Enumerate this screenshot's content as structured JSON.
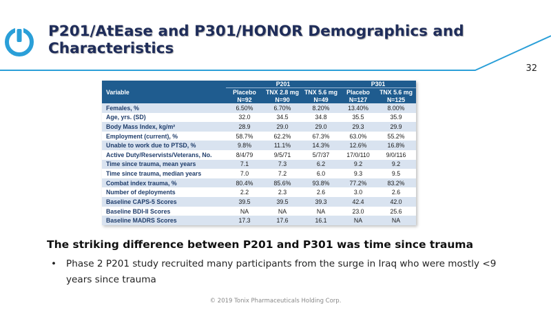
{
  "title": "P201/AtEase and P301/HONOR Demographics and Characteristics",
  "page_number": "32",
  "colors": {
    "title": "#1f2d5a",
    "accent": "#2a9fd8",
    "table_header": "#1f5c8f",
    "row_shade": "#d9e3f0"
  },
  "logo_icon": "power-icon",
  "table": {
    "variable_header": "Variable",
    "groups": [
      "P201",
      "P301"
    ],
    "columns": [
      {
        "label": "Placebo",
        "n": "N=92"
      },
      {
        "label": "TNX 2.8 mg",
        "n": "N=90"
      },
      {
        "label": "TNX  5.6 mg",
        "n": "N=49"
      },
      {
        "label": "Placebo",
        "n": "N=127"
      },
      {
        "label": "TNX 5.6 mg",
        "n": "N=125"
      }
    ],
    "rows": [
      {
        "label": "Females, %",
        "values": [
          "6.50%",
          "6.70%",
          "8.20%",
          "13.40%",
          "8.00%"
        ]
      },
      {
        "label": "Age, yrs. (SD)",
        "values": [
          "32.0",
          "34.5",
          "34.8",
          "35.5",
          "35.9"
        ]
      },
      {
        "label": "Body Mass Index, kg/m²",
        "values": [
          "28.9",
          "29.0",
          "29.0",
          "29.3",
          "29.9"
        ]
      },
      {
        "label": "Employment (current), %",
        "values": [
          "58.7%",
          "62.2%",
          "67.3%",
          "63.0%",
          "55.2%"
        ]
      },
      {
        "label": "Unable to work due to PTSD, %",
        "values": [
          "9.8%",
          "11.1%",
          "14.3%",
          "12.6%",
          "16.8%"
        ]
      },
      {
        "label": "Active Duty/Reservists/Veterans, No.",
        "values": [
          "8/4/79",
          "9/5/71",
          "5/7/37",
          "17/0/110",
          "9/0/116"
        ]
      },
      {
        "label": "Time since trauma, mean years",
        "values": [
          "7.1",
          "7.3",
          "6.2",
          "9.2",
          "9.2"
        ]
      },
      {
        "label": "Time since trauma, median years",
        "values": [
          "7.0",
          "7.2",
          "6.0",
          "9.3",
          "9.5"
        ]
      },
      {
        "label": "Combat index trauma, %",
        "values": [
          "80.4%",
          "85.6%",
          "93.8%",
          "77.2%",
          "83.2%"
        ]
      },
      {
        "label": "Number of deployments",
        "values": [
          "2.2",
          "2.3",
          "2.6",
          "3.0",
          "2.6"
        ]
      },
      {
        "label": "Baseline CAPS-5 Scores",
        "values": [
          "39.5",
          "39.5",
          "39.3",
          "42.4",
          "42.0"
        ]
      },
      {
        "label": "Baseline BDI-II Scores",
        "values": [
          "NA",
          "NA",
          "NA",
          "23.0",
          "25.6"
        ]
      },
      {
        "label": "Baseline MADRS Scores",
        "values": [
          "17.3",
          "17.6",
          "16.1",
          "NA",
          "NA"
        ]
      }
    ]
  },
  "bullet_heading": "The striking difference between P201 and P301 was time since trauma",
  "bullets": [
    "Phase 2 P201 study recruited many participants from the surge in Iraq who were mostly <9 years since trauma"
  ],
  "bullet_marker": "•",
  "footer": "© 2019 Tonix Pharmaceuticals Holding Corp."
}
